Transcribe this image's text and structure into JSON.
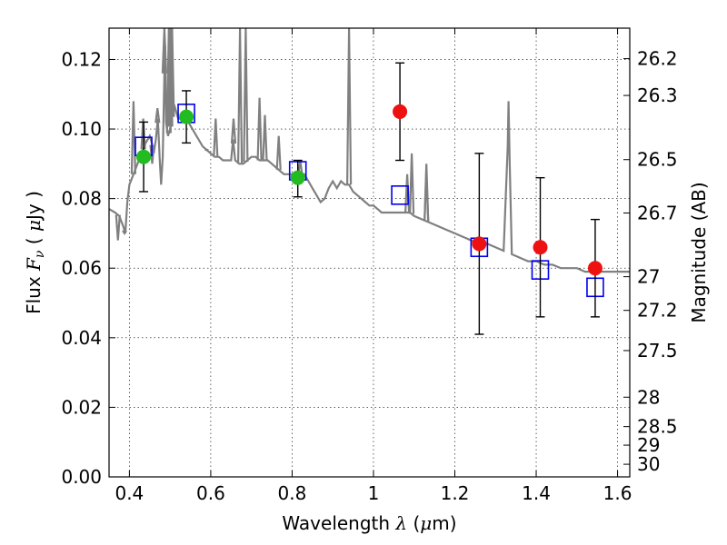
{
  "chart_data": {
    "type": "scatter",
    "xlabel": {
      "prefix": "Wavelength  ",
      "symbol": "λ",
      "unit_prefix": " (",
      "unit_mu": "μ",
      "unit_rest": "m)"
    },
    "ylabel": {
      "prefix": "Flux  ",
      "symbol": "F",
      "sub": "ν",
      "unit_prefix": "  ( ",
      "unit_mu": "μ",
      "unit_rest": "Jy )"
    },
    "ylabel_right": "Magnitude (AB)",
    "xlim": [
      0.35,
      1.63
    ],
    "ylim": [
      0.0,
      0.129
    ],
    "grid": true,
    "x_ticks": [
      0.4,
      0.6,
      0.8,
      1.0,
      1.2,
      1.4,
      1.6
    ],
    "x_tick_labels": [
      "0.4",
      "0.6",
      "0.8",
      "1",
      "1.2",
      "1.4",
      "1.6"
    ],
    "y_ticks": [
      0.0,
      0.02,
      0.04,
      0.06,
      0.08,
      0.1,
      0.12
    ],
    "y_tick_labels": [
      "0.00",
      "0.02",
      "0.04",
      "0.06",
      "0.08",
      "0.10",
      "0.12"
    ],
    "mag_ticks": [
      26.2,
      26.3,
      26.5,
      26.7,
      27,
      27.2,
      27.5,
      28,
      28.5,
      29,
      30
    ],
    "mag_tick_labels": [
      "26.2",
      "26.3",
      "26.5",
      "26.7",
      "27",
      "27.2",
      "27.5",
      "28",
      "28.5",
      "29",
      "30"
    ],
    "colors": {
      "spectrum": "#808080",
      "green_points": "#22bb22",
      "red_points": "#ee1111",
      "model_squares": "#0000ee",
      "errorbars": "#000000"
    },
    "series": [
      {
        "marker": "circle",
        "color": "#22bb22",
        "points": [
          {
            "x": 0.435,
            "y": 0.092,
            "yerr_low": 0.082,
            "yerr_high": 0.102
          },
          {
            "x": 0.54,
            "y": 0.1035,
            "yerr_low": 0.096,
            "yerr_high": 0.111
          },
          {
            "x": 0.814,
            "y": 0.086,
            "yerr_low": 0.0805,
            "yerr_high": 0.091
          }
        ]
      },
      {
        "marker": "circle",
        "color": "#ee1111",
        "points": [
          {
            "x": 1.065,
            "y": 0.105,
            "yerr_low": 0.091,
            "yerr_high": 0.119
          },
          {
            "x": 1.26,
            "y": 0.067,
            "yerr_low": 0.041,
            "yerr_high": 0.093
          },
          {
            "x": 1.41,
            "y": 0.066,
            "yerr_low": 0.046,
            "yerr_high": 0.086
          },
          {
            "x": 1.545,
            "y": 0.06,
            "yerr_low": 0.046,
            "yerr_high": 0.074
          }
        ]
      },
      {
        "marker": "open-square",
        "color": "#0000ee",
        "points": [
          {
            "x": 0.435,
            "y": 0.095
          },
          {
            "x": 0.54,
            "y": 0.1045
          },
          {
            "x": 0.814,
            "y": 0.088
          },
          {
            "x": 1.065,
            "y": 0.081
          },
          {
            "x": 1.26,
            "y": 0.066
          },
          {
            "x": 1.41,
            "y": 0.0595
          },
          {
            "x": 1.545,
            "y": 0.0545
          }
        ]
      },
      {
        "marker": "line",
        "color": "#808080",
        "points": [
          [
            0.35,
            0.077
          ],
          [
            0.365,
            0.076
          ],
          [
            0.375,
            0.075
          ],
          [
            0.385,
            0.072
          ],
          [
            0.39,
            0.07
          ],
          [
            0.395,
            0.079
          ],
          [
            0.4,
            0.084
          ],
          [
            0.41,
            0.087
          ],
          [
            0.42,
            0.09
          ],
          [
            0.43,
            0.093
          ],
          [
            0.44,
            0.096
          ],
          [
            0.45,
            0.098
          ],
          [
            0.455,
            0.096
          ],
          [
            0.46,
            0.093
          ],
          [
            0.465,
            0.097
          ],
          [
            0.47,
            0.103
          ],
          [
            0.475,
            0.09
          ],
          [
            0.478,
            0.084
          ],
          [
            0.482,
            0.092
          ],
          [
            0.486,
            0.116
          ],
          [
            0.488,
            0.124
          ],
          [
            0.49,
            0.102
          ],
          [
            0.495,
            0.098
          ],
          [
            0.5,
            0.1
          ],
          [
            0.51,
            0.107
          ],
          [
            0.52,
            0.103
          ],
          [
            0.525,
            0.103
          ],
          [
            0.53,
            0.104
          ],
          [
            0.54,
            0.103
          ],
          [
            0.55,
            0.101
          ],
          [
            0.56,
            0.099
          ],
          [
            0.57,
            0.097
          ],
          [
            0.58,
            0.095
          ],
          [
            0.59,
            0.094
          ],
          [
            0.6,
            0.093
          ],
          [
            0.61,
            0.092
          ],
          [
            0.62,
            0.092
          ],
          [
            0.63,
            0.091
          ],
          [
            0.64,
            0.091
          ],
          [
            0.65,
            0.091
          ],
          [
            0.655,
            0.097
          ],
          [
            0.66,
            0.091
          ],
          [
            0.67,
            0.09
          ],
          [
            0.68,
            0.09
          ],
          [
            0.69,
            0.091
          ],
          [
            0.7,
            0.092
          ],
          [
            0.71,
            0.092
          ],
          [
            0.72,
            0.091
          ],
          [
            0.73,
            0.091
          ],
          [
            0.74,
            0.091
          ],
          [
            0.75,
            0.09
          ],
          [
            0.76,
            0.089
          ],
          [
            0.77,
            0.088
          ],
          [
            0.78,
            0.087
          ],
          [
            0.79,
            0.087
          ],
          [
            0.8,
            0.087
          ],
          [
            0.81,
            0.087
          ],
          [
            0.82,
            0.087
          ],
          [
            0.83,
            0.087
          ],
          [
            0.84,
            0.085
          ],
          [
            0.85,
            0.083
          ],
          [
            0.86,
            0.081
          ],
          [
            0.87,
            0.079
          ],
          [
            0.88,
            0.08
          ],
          [
            0.89,
            0.083
          ],
          [
            0.9,
            0.085
          ],
          [
            0.91,
            0.083
          ],
          [
            0.92,
            0.085
          ],
          [
            0.93,
            0.084
          ],
          [
            0.94,
            0.084
          ],
          [
            0.95,
            0.082
          ],
          [
            0.96,
            0.081
          ],
          [
            0.97,
            0.08
          ],
          [
            0.98,
            0.079
          ],
          [
            0.99,
            0.078
          ],
          [
            1.0,
            0.078
          ],
          [
            1.01,
            0.077
          ],
          [
            1.02,
            0.076
          ],
          [
            1.03,
            0.076
          ],
          [
            1.04,
            0.076
          ],
          [
            1.05,
            0.076
          ],
          [
            1.06,
            0.076
          ],
          [
            1.07,
            0.076
          ],
          [
            1.08,
            0.076
          ],
          [
            1.09,
            0.076
          ],
          [
            1.1,
            0.075
          ],
          [
            1.12,
            0.074
          ],
          [
            1.14,
            0.073
          ],
          [
            1.16,
            0.072
          ],
          [
            1.18,
            0.071
          ],
          [
            1.2,
            0.07
          ],
          [
            1.22,
            0.069
          ],
          [
            1.24,
            0.068
          ],
          [
            1.26,
            0.067
          ],
          [
            1.28,
            0.067
          ],
          [
            1.3,
            0.066
          ],
          [
            1.32,
            0.065
          ],
          [
            1.33,
            0.095
          ],
          [
            1.332,
            0.108
          ],
          [
            1.335,
            0.09
          ],
          [
            1.34,
            0.064
          ],
          [
            1.36,
            0.063
          ],
          [
            1.38,
            0.062
          ],
          [
            1.4,
            0.062
          ],
          [
            1.42,
            0.061
          ],
          [
            1.44,
            0.061
          ],
          [
            1.46,
            0.06
          ],
          [
            1.48,
            0.06
          ],
          [
            1.5,
            0.06
          ],
          [
            1.52,
            0.059
          ],
          [
            1.54,
            0.059
          ],
          [
            1.56,
            0.059
          ],
          [
            1.58,
            0.059
          ],
          [
            1.6,
            0.059
          ],
          [
            1.63,
            0.059
          ]
        ],
        "peaks": [
          [
            0.372,
            0.068
          ],
          [
            0.388,
            0.07
          ],
          [
            0.41,
            0.108
          ],
          [
            0.434,
            0.103
          ],
          [
            0.456,
            0.09
          ],
          [
            0.469,
            0.106
          ],
          [
            0.486,
            0.129
          ],
          [
            0.497,
            0.129
          ],
          [
            0.501,
            0.129
          ],
          [
            0.505,
            0.129
          ],
          [
            0.59,
            0.094
          ],
          [
            0.612,
            0.103
          ],
          [
            0.656,
            0.103
          ],
          [
            0.672,
            0.129
          ],
          [
            0.686,
            0.129
          ],
          [
            0.72,
            0.109
          ],
          [
            0.733,
            0.104
          ],
          [
            0.767,
            0.098
          ],
          [
            0.82,
            0.091
          ],
          [
            0.94,
            0.129
          ],
          [
            1.083,
            0.087
          ],
          [
            1.094,
            0.093
          ],
          [
            1.13,
            0.088
          ],
          [
            1.13,
            0.09
          ]
        ]
      }
    ]
  }
}
